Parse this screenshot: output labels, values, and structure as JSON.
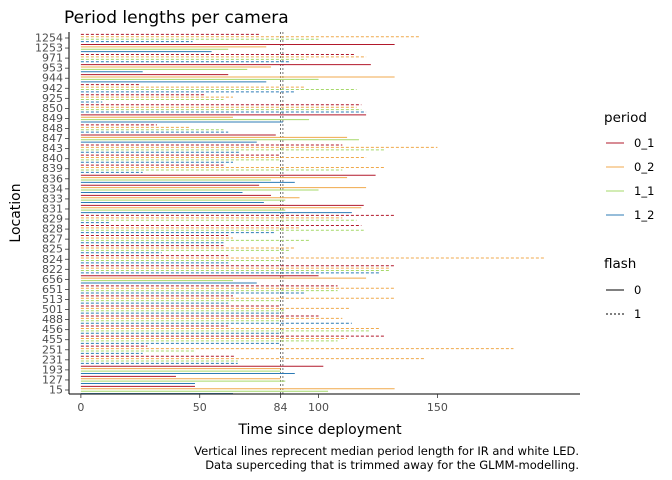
{
  "chart_data": {
    "type": "line",
    "title": "Period lengths per camera",
    "xlabel": "Time since deployment",
    "ylabel": "Location",
    "xlim": [
      -5,
      210
    ],
    "x_ticks": [
      0,
      50,
      84,
      100,
      150
    ],
    "median_lines": [
      84,
      85
    ],
    "y_labels_top_to_bottom": [
      "1254",
      "1253",
      "971",
      "953",
      "944",
      "942",
      "925",
      "850",
      "849",
      "848",
      "847",
      "843",
      "840",
      "839",
      "836",
      "834",
      "833",
      "831",
      "829",
      "828",
      "827",
      "825",
      "824",
      "822",
      "656",
      "651",
      "513",
      "501",
      "488",
      "456",
      "455",
      "251",
      "231",
      "193",
      "127",
      "15"
    ],
    "legend_period": {
      "title": "period",
      "entries": [
        "0_1",
        "0_2",
        "1_1",
        "1_2"
      ]
    },
    "legend_flash": {
      "title": "flash",
      "entries": [
        "0",
        "1"
      ]
    },
    "colors": {
      "0_1": "#b2182b",
      "0_2": "#f0a94c",
      "1_1": "#a6d96a",
      "1_2": "#2c7bb6"
    },
    "series": [
      {
        "location": "1254",
        "p0_1": 75,
        "p0_2": 143,
        "p1_1": 100,
        "p1_2": 47,
        "flash": "1"
      },
      {
        "location": "1253",
        "p0_1": 132,
        "p0_2": 78,
        "p1_1": 62,
        "p1_2": 55,
        "flash": "0"
      },
      {
        "location": "971",
        "p0_1": 115,
        "p0_2": 120,
        "p1_1": 95,
        "p1_2": 88,
        "flash": "1"
      },
      {
        "location": "953",
        "p0_1": 122,
        "p0_2": 80,
        "p1_1": 70,
        "p1_2": 26,
        "flash": "0"
      },
      {
        "location": "944",
        "p0_1": 62,
        "p0_2": 132,
        "p1_1": 100,
        "p1_2": 78,
        "flash": "0"
      },
      {
        "location": "942",
        "p0_1": 25,
        "p0_2": 94,
        "p1_1": 116,
        "p1_2": 90,
        "flash": "1"
      },
      {
        "location": "925",
        "p0_1": 52,
        "p0_2": 64,
        "p1_1": 60,
        "p1_2": 9,
        "flash": "1"
      },
      {
        "location": "850",
        "p0_1": 118,
        "p0_2": 116,
        "p1_1": 118,
        "p1_2": 120,
        "flash": "1"
      },
      {
        "location": "849",
        "p0_1": 120,
        "p0_2": 64,
        "p1_1": 96,
        "p1_2": 85,
        "flash": "0"
      },
      {
        "location": "848",
        "p0_1": 32,
        "p0_2": 46,
        "p1_1": 60,
        "p1_2": 62,
        "flash": "1"
      },
      {
        "location": "847",
        "p0_1": 82,
        "p0_2": 112,
        "p1_1": 117,
        "p1_2": 74,
        "flash": "0"
      },
      {
        "location": "843",
        "p0_1": 110,
        "p0_2": 150,
        "p1_1": 128,
        "p1_2": 67,
        "flash": "1"
      },
      {
        "location": "840",
        "p0_1": 84,
        "p0_2": 120,
        "p1_1": 84,
        "p1_2": 64,
        "flash": "1"
      },
      {
        "location": "839",
        "p0_1": 60,
        "p0_2": 128,
        "p1_1": 110,
        "p1_2": 26,
        "flash": "1"
      },
      {
        "location": "836",
        "p0_1": 124,
        "p0_2": 112,
        "p1_1": 80,
        "p1_2": 90,
        "flash": "0"
      },
      {
        "location": "834",
        "p0_1": 75,
        "p0_2": 120,
        "p1_1": 100,
        "p1_2": 68,
        "flash": "0"
      },
      {
        "location": "833",
        "p0_1": 80,
        "p0_2": 92,
        "p1_1": 86,
        "p1_2": 77,
        "flash": "0"
      },
      {
        "location": "831",
        "p0_1": 119,
        "p0_2": 118,
        "p1_1": 86,
        "p1_2": 114,
        "flash": "0"
      },
      {
        "location": "829",
        "p0_1": 132,
        "p0_2": 110,
        "p1_1": 116,
        "p1_2": 12,
        "flash": "1"
      },
      {
        "location": "828",
        "p0_1": 118,
        "p0_2": 92,
        "p1_1": 119,
        "p1_2": 82,
        "flash": "1"
      },
      {
        "location": "827",
        "p0_1": 62,
        "p0_2": 64,
        "p1_1": 96,
        "p1_2": 60,
        "flash": "1"
      },
      {
        "location": "825",
        "p0_1": 60,
        "p0_2": 90,
        "p1_1": 88,
        "p1_2": 34,
        "flash": "1"
      },
      {
        "location": "824",
        "p0_1": 62,
        "p0_2": 195,
        "p1_1": 84,
        "p1_2": 62,
        "flash": "1"
      },
      {
        "location": "822",
        "p0_1": 132,
        "p0_2": 130,
        "p1_1": 130,
        "p1_2": 126,
        "flash": "1"
      },
      {
        "location": "656",
        "p0_1": 100,
        "p0_2": 120,
        "p1_1": 64,
        "p1_2": 74,
        "flash": "0"
      },
      {
        "location": "651",
        "p0_1": 108,
        "p0_2": 132,
        "p1_1": 108,
        "p1_2": 94,
        "flash": "1"
      },
      {
        "location": "513",
        "p0_1": 64,
        "p0_2": 132,
        "p1_1": 84,
        "p1_2": 62,
        "flash": "1"
      },
      {
        "location": "501",
        "p0_1": 84,
        "p0_2": 113,
        "p1_1": 86,
        "p1_2": 84,
        "flash": "1"
      },
      {
        "location": "488",
        "p0_1": 100,
        "p0_2": 110,
        "p1_1": 84,
        "p1_2": 114,
        "flash": "1"
      },
      {
        "location": "456",
        "p0_1": 62,
        "p0_2": 126,
        "p1_1": 122,
        "p1_2": 84,
        "flash": "1"
      },
      {
        "location": "455",
        "p0_1": 128,
        "p0_2": 112,
        "p1_1": 108,
        "p1_2": 84,
        "flash": "1"
      },
      {
        "location": "251",
        "p0_1": 28,
        "p0_2": 182,
        "p1_1": 48,
        "p1_2": 26,
        "flash": "1"
      },
      {
        "location": "231",
        "p0_1": 65,
        "p0_2": 145,
        "p1_1": 66,
        "p1_2": 66,
        "flash": "1"
      },
      {
        "location": "193",
        "p0_1": 102,
        "p0_2": 84,
        "p1_1": 84,
        "p1_2": 90,
        "flash": "0"
      },
      {
        "location": "127",
        "p0_1": 40,
        "p0_2": 84,
        "p1_1": 86,
        "p1_2": 48,
        "flash": "0"
      },
      {
        "location": "15",
        "p0_1": 48,
        "p0_2": 132,
        "p1_1": 104,
        "p1_2": 64,
        "flash": "0"
      }
    ],
    "caption_line1": "Vertical lines reprecent median period length for IR and white LED.",
    "caption_line2": "Data superceding that is trimmed away for the GLMM-modelling."
  }
}
